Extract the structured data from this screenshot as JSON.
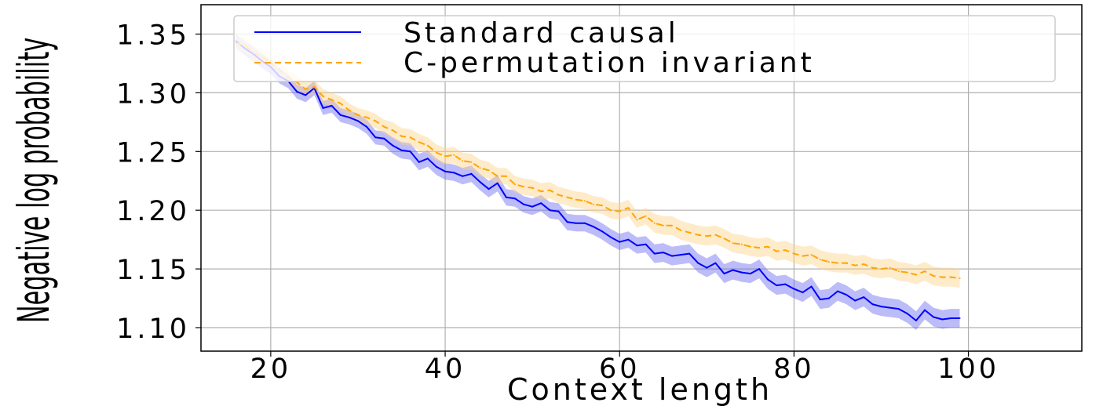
{
  "chart_data": {
    "type": "line",
    "xlabel": "Context length",
    "ylabel": "Negative log probability",
    "xlim": [
      12,
      113
    ],
    "ylim": [
      1.08,
      1.375
    ],
    "xticks": [
      20,
      40,
      60,
      80,
      100
    ],
    "xtick_labels": [
      "20",
      "40",
      "60",
      "80",
      "100"
    ],
    "yticks": [
      1.1,
      1.15,
      1.2,
      1.25,
      1.3,
      1.35
    ],
    "ytick_labels": [
      "1.10",
      "1.15",
      "1.20",
      "1.25",
      "1.30",
      "1.35"
    ],
    "grid": true,
    "legend_position": "top-right",
    "x": [
      16,
      17,
      18,
      19,
      20,
      21,
      22,
      23,
      24,
      25,
      26,
      27,
      28,
      29,
      30,
      31,
      32,
      33,
      34,
      35,
      36,
      37,
      38,
      39,
      40,
      41,
      42,
      43,
      44,
      45,
      46,
      47,
      48,
      49,
      50,
      51,
      52,
      53,
      54,
      55,
      56,
      57,
      58,
      59,
      60,
      61,
      62,
      63,
      64,
      65,
      66,
      67,
      68,
      69,
      70,
      71,
      72,
      73,
      74,
      75,
      76,
      77,
      78,
      79,
      80,
      81,
      82,
      83,
      84,
      85,
      86,
      87,
      88,
      89,
      90,
      91,
      92,
      93,
      94,
      95,
      96,
      97,
      98,
      99
    ],
    "series": [
      {
        "name": "Standard causal",
        "color": "#0000ff",
        "line_style": "solid",
        "band_color": "#6b6bf0",
        "values": [
          1.344,
          1.338,
          1.333,
          1.327,
          1.322,
          1.314,
          1.31,
          1.301,
          1.298,
          1.304,
          1.287,
          1.289,
          1.281,
          1.279,
          1.276,
          1.271,
          1.262,
          1.261,
          1.255,
          1.251,
          1.25,
          1.241,
          1.244,
          1.237,
          1.233,
          1.232,
          1.229,
          1.231,
          1.224,
          1.218,
          1.223,
          1.211,
          1.21,
          1.205,
          1.203,
          1.206,
          1.2,
          1.199,
          1.19,
          1.189,
          1.189,
          1.186,
          1.182,
          1.177,
          1.173,
          1.175,
          1.17,
          1.171,
          1.163,
          1.164,
          1.161,
          1.162,
          1.163,
          1.155,
          1.151,
          1.155,
          1.146,
          1.149,
          1.147,
          1.146,
          1.15,
          1.141,
          1.136,
          1.137,
          1.133,
          1.13,
          1.135,
          1.124,
          1.125,
          1.131,
          1.128,
          1.123,
          1.126,
          1.12,
          1.118,
          1.117,
          1.116,
          1.112,
          1.106,
          1.115,
          1.109,
          1.107,
          1.108,
          1.108
        ],
        "band_halfwidth": [
          0.006,
          0.006,
          0.006,
          0.006,
          0.006,
          0.006,
          0.006,
          0.006,
          0.006,
          0.006,
          0.006,
          0.006,
          0.006,
          0.006,
          0.006,
          0.006,
          0.006,
          0.006,
          0.007,
          0.007,
          0.007,
          0.007,
          0.007,
          0.007,
          0.007,
          0.007,
          0.007,
          0.007,
          0.007,
          0.007,
          0.007,
          0.007,
          0.007,
          0.007,
          0.007,
          0.007,
          0.007,
          0.007,
          0.007,
          0.007,
          0.007,
          0.007,
          0.007,
          0.007,
          0.007,
          0.007,
          0.007,
          0.007,
          0.008,
          0.008,
          0.008,
          0.008,
          0.008,
          0.008,
          0.008,
          0.008,
          0.008,
          0.008,
          0.008,
          0.008,
          0.008,
          0.008,
          0.008,
          0.008,
          0.008,
          0.008,
          0.008,
          0.008,
          0.008,
          0.008,
          0.008,
          0.008,
          0.008,
          0.008,
          0.008,
          0.008,
          0.008,
          0.008,
          0.008,
          0.008,
          0.008,
          0.008,
          0.008,
          0.008
        ]
      },
      {
        "name": "C-permutation invariant",
        "color": "#ffa500",
        "line_style": "dashed",
        "band_color": "#fdd38a",
        "values": [
          1.342,
          1.341,
          1.334,
          1.331,
          1.325,
          1.32,
          1.313,
          1.309,
          1.303,
          1.305,
          1.297,
          1.294,
          1.291,
          1.285,
          1.281,
          1.279,
          1.276,
          1.271,
          1.268,
          1.263,
          1.262,
          1.258,
          1.255,
          1.249,
          1.246,
          1.247,
          1.242,
          1.241,
          1.236,
          1.234,
          1.229,
          1.229,
          1.222,
          1.22,
          1.219,
          1.216,
          1.217,
          1.213,
          1.211,
          1.209,
          1.208,
          1.205,
          1.204,
          1.2,
          1.199,
          1.202,
          1.192,
          1.195,
          1.189,
          1.187,
          1.187,
          1.183,
          1.181,
          1.179,
          1.178,
          1.179,
          1.176,
          1.172,
          1.171,
          1.169,
          1.168,
          1.169,
          1.165,
          1.166,
          1.163,
          1.161,
          1.162,
          1.158,
          1.156,
          1.155,
          1.155,
          1.153,
          1.154,
          1.151,
          1.15,
          1.151,
          1.148,
          1.147,
          1.145,
          1.148,
          1.144,
          1.143,
          1.143,
          1.142
        ],
        "band_halfwidth": [
          0.006,
          0.006,
          0.006,
          0.006,
          0.006,
          0.006,
          0.006,
          0.006,
          0.006,
          0.006,
          0.006,
          0.006,
          0.006,
          0.006,
          0.006,
          0.006,
          0.006,
          0.006,
          0.007,
          0.007,
          0.007,
          0.007,
          0.007,
          0.007,
          0.007,
          0.007,
          0.007,
          0.007,
          0.007,
          0.007,
          0.007,
          0.007,
          0.007,
          0.007,
          0.007,
          0.007,
          0.007,
          0.007,
          0.007,
          0.007,
          0.007,
          0.007,
          0.007,
          0.007,
          0.007,
          0.007,
          0.007,
          0.007,
          0.008,
          0.008,
          0.008,
          0.008,
          0.008,
          0.008,
          0.008,
          0.008,
          0.008,
          0.008,
          0.008,
          0.008,
          0.008,
          0.008,
          0.008,
          0.008,
          0.008,
          0.008,
          0.008,
          0.008,
          0.008,
          0.008,
          0.008,
          0.008,
          0.008,
          0.008,
          0.008,
          0.008,
          0.008,
          0.008,
          0.008,
          0.008,
          0.008,
          0.008,
          0.008,
          0.008
        ]
      }
    ]
  }
}
